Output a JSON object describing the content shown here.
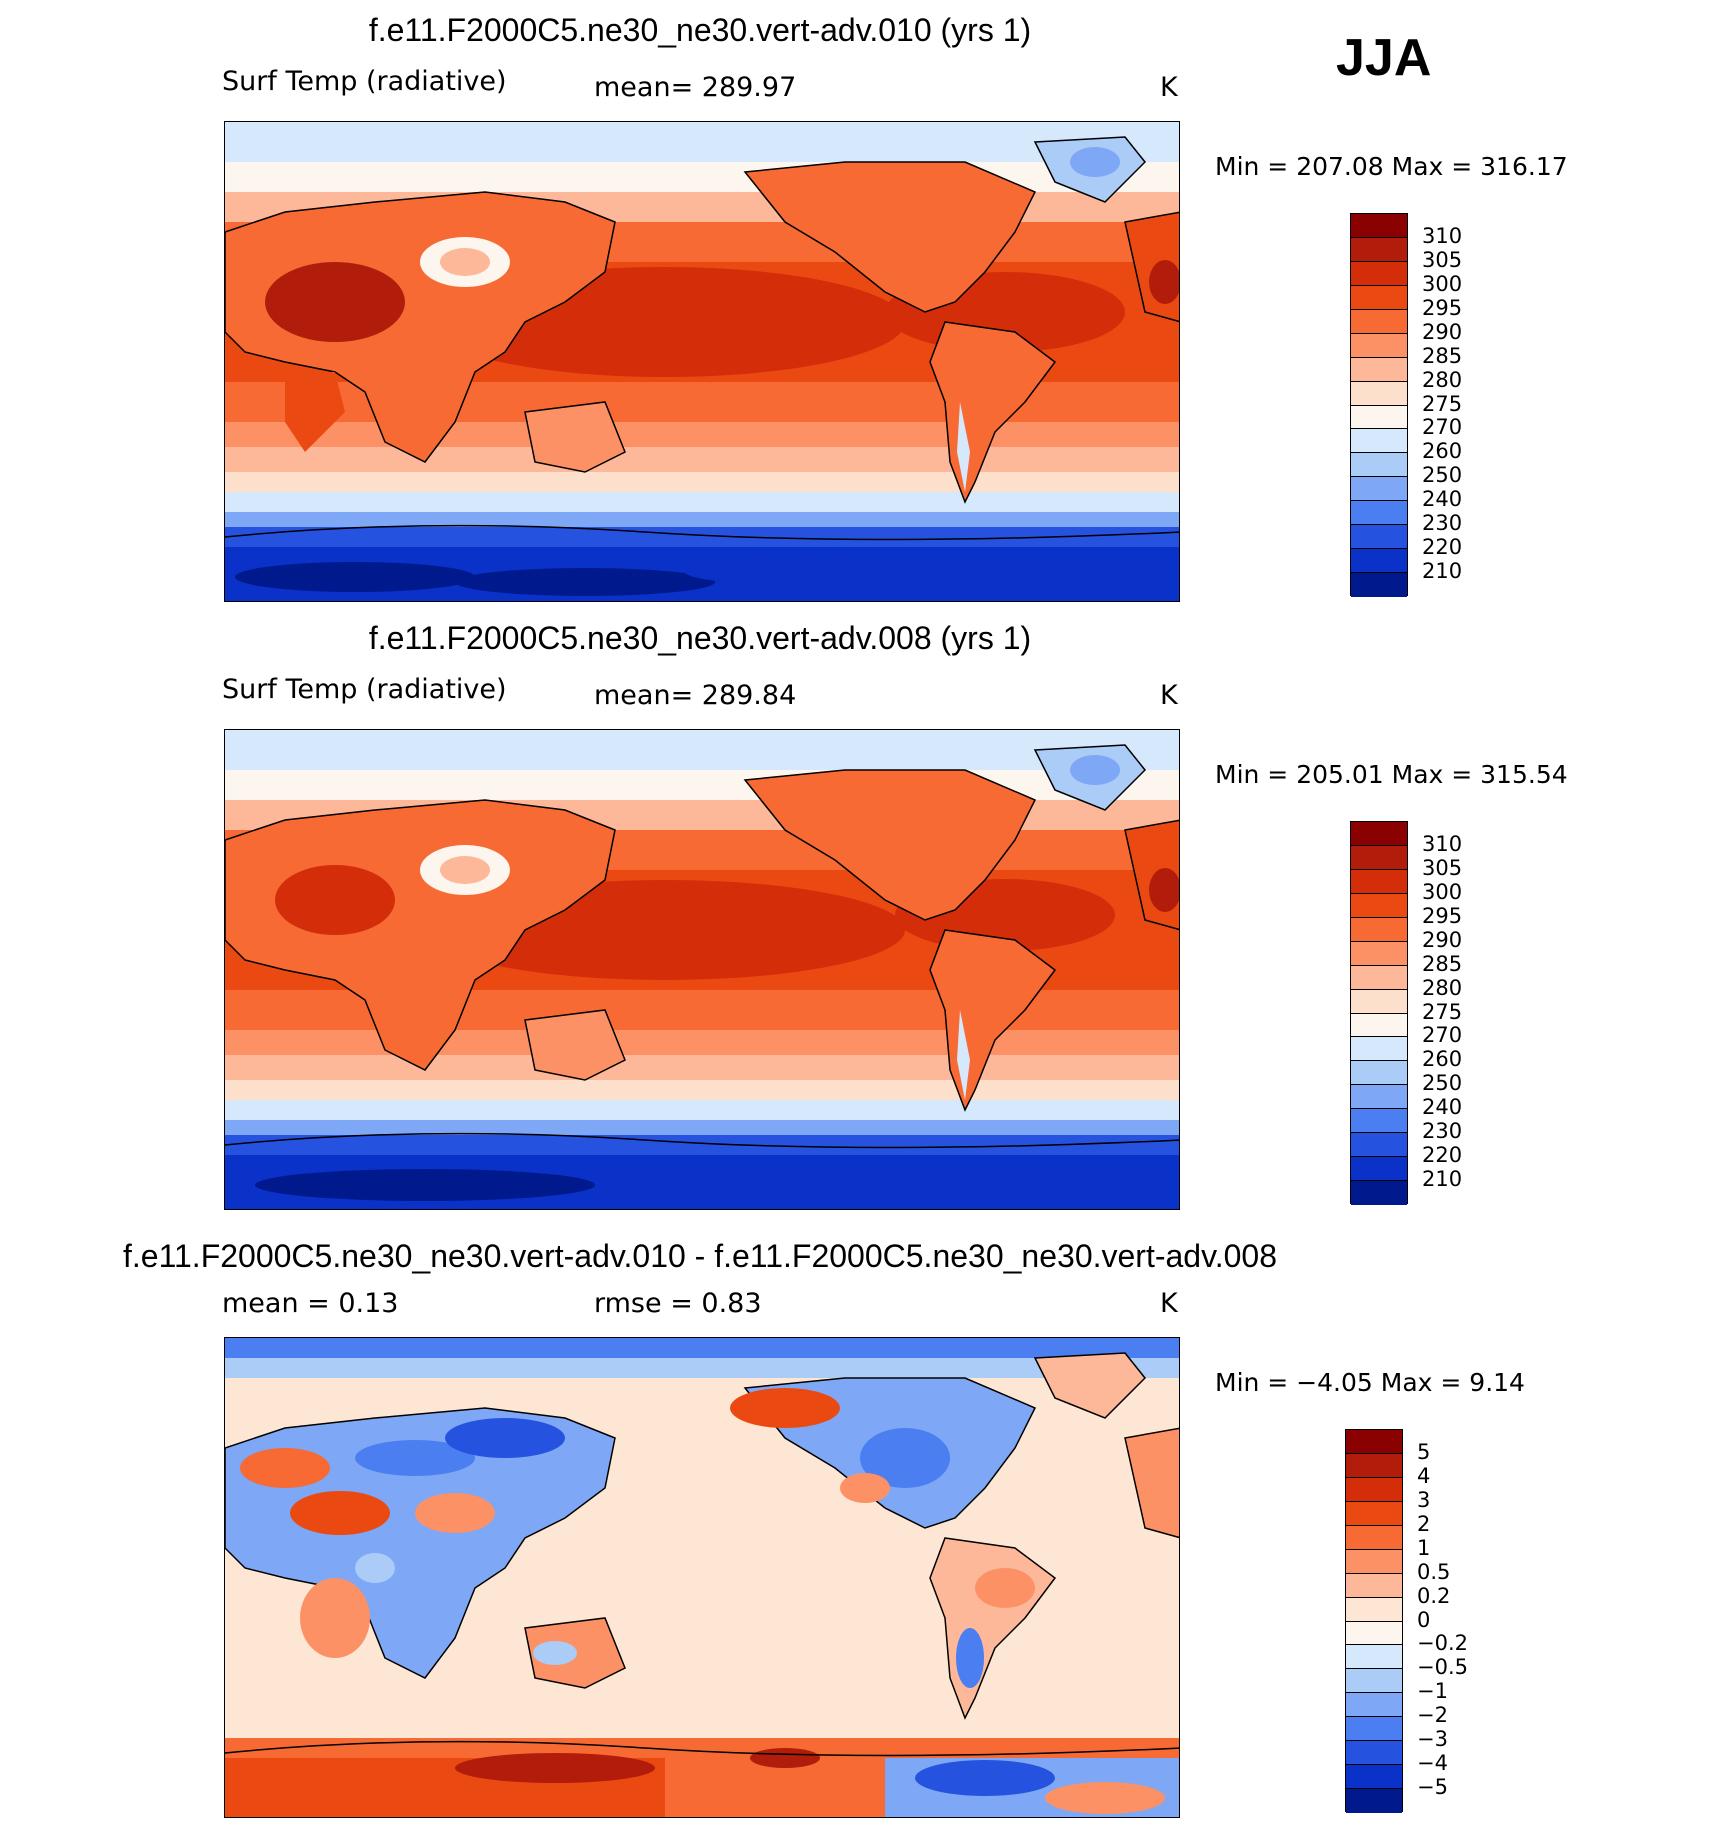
{
  "season": "JJA",
  "units": "K",
  "abs_levels": [
    "310",
    "305",
    "300",
    "295",
    "290",
    "285",
    "280",
    "275",
    "270",
    "260",
    "250",
    "240",
    "230",
    "220",
    "210"
  ],
  "abs_colors": [
    "#8b0000",
    "#b21c0a",
    "#d42d0a",
    "#ea4a12",
    "#f76a33",
    "#fc9166",
    "#fdb89a",
    "#fde0cc",
    "#fdf6ee",
    "#d6e8fb",
    "#aaccf7",
    "#7ea8f5",
    "#4b7ef0",
    "#2553e0",
    "#0a31c8",
    "#001a8e"
  ],
  "diff_levels": [
    "5",
    "4",
    "3",
    "2",
    "1",
    "0.5",
    "0.2",
    "0",
    "−0.2",
    "−0.5",
    "−1",
    "−2",
    "−3",
    "−4",
    "−5"
  ],
  "diff_colors": [
    "#8b0000",
    "#b21c0a",
    "#d42d0a",
    "#ea4a12",
    "#f76a33",
    "#fc9166",
    "#fdb89a",
    "#fde6d4",
    "#fdf6ee",
    "#d6e8fb",
    "#aaccf7",
    "#7ea8f5",
    "#4b7ef0",
    "#2553e0",
    "#0a31c8",
    "#001a8e"
  ],
  "panels": [
    {
      "title": "f.e11.F2000C5.ne30_ne30.vert-adv.010 (yrs 1)",
      "left_label": "Surf Temp (radiative)",
      "center_label": "mean=  289.97",
      "units": "K",
      "minmax": "Min  =  207.08  Max  =  316.17"
    },
    {
      "title": "f.e11.F2000C5.ne30_ne30.vert-adv.008 (yrs 1)",
      "left_label": "Surf Temp (radiative)",
      "center_label": "mean=  289.84",
      "units": "K",
      "minmax": "Min  =  205.01  Max  =  315.54"
    },
    {
      "title": "f.e11.F2000C5.ne30_ne30.vert-adv.010 - f.e11.F2000C5.ne30_ne30.vert-adv.008",
      "left_label": "mean  =      0.13",
      "center_label": "rmse  =      0.83",
      "units": "K",
      "minmax": "Min  =    −4.05  Max  =      9.14"
    }
  ]
}
